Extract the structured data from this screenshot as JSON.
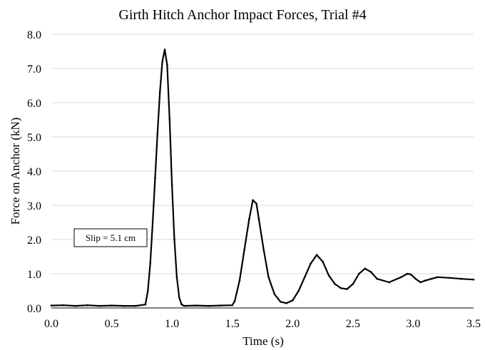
{
  "chart_data": {
    "type": "line",
    "title": "Girth Hitch Anchor Impact Forces, Trial #4",
    "xlabel": "Time (s)",
    "ylabel": "Force on Anchor (kN)",
    "xlim": [
      0,
      3.5
    ],
    "ylim": [
      0,
      8
    ],
    "x_ticks": [
      "0.0",
      "0.5",
      "1.0",
      "1.5",
      "2.0",
      "2.5",
      "3.0",
      "3.5"
    ],
    "y_ticks": [
      "0.0",
      "1.0",
      "2.0",
      "3.0",
      "4.0",
      "5.0",
      "6.0",
      "7.0",
      "8.0"
    ],
    "grid": "horizontal",
    "legend": "none",
    "annotation": "Slip = 5.1 cm",
    "line_color": "#000000",
    "series": [
      {
        "x": [
          0.0,
          0.1,
          0.2,
          0.3,
          0.4,
          0.5,
          0.6,
          0.7,
          0.78,
          0.8,
          0.82,
          0.84,
          0.86,
          0.88,
          0.9,
          0.92,
          0.94,
          0.96,
          0.98,
          1.0,
          1.02,
          1.04,
          1.06,
          1.08,
          1.1,
          1.2,
          1.3,
          1.4,
          1.5,
          1.52,
          1.56,
          1.6,
          1.64,
          1.67,
          1.7,
          1.72,
          1.76,
          1.8,
          1.85,
          1.9,
          1.95,
          2.0,
          2.05,
          2.1,
          2.15,
          2.2,
          2.25,
          2.3,
          2.35,
          2.4,
          2.45,
          2.5,
          2.55,
          2.6,
          2.65,
          2.7,
          2.8,
          2.9,
          2.95,
          2.98,
          3.02,
          3.06,
          3.1,
          3.15,
          3.2,
          3.3,
          3.4,
          3.5
        ],
        "y": [
          0.07,
          0.08,
          0.06,
          0.08,
          0.06,
          0.07,
          0.06,
          0.06,
          0.1,
          0.5,
          1.3,
          2.5,
          3.8,
          5.1,
          6.3,
          7.2,
          7.55,
          7.1,
          5.5,
          3.6,
          2.0,
          0.9,
          0.3,
          0.1,
          0.06,
          0.07,
          0.06,
          0.07,
          0.08,
          0.2,
          0.8,
          1.7,
          2.6,
          3.15,
          3.05,
          2.6,
          1.7,
          0.9,
          0.4,
          0.18,
          0.14,
          0.22,
          0.5,
          0.9,
          1.3,
          1.55,
          1.35,
          0.95,
          0.7,
          0.58,
          0.55,
          0.7,
          1.0,
          1.15,
          1.05,
          0.85,
          0.75,
          0.9,
          1.0,
          0.98,
          0.85,
          0.75,
          0.8,
          0.85,
          0.9,
          0.88,
          0.85,
          0.83
        ]
      }
    ]
  }
}
